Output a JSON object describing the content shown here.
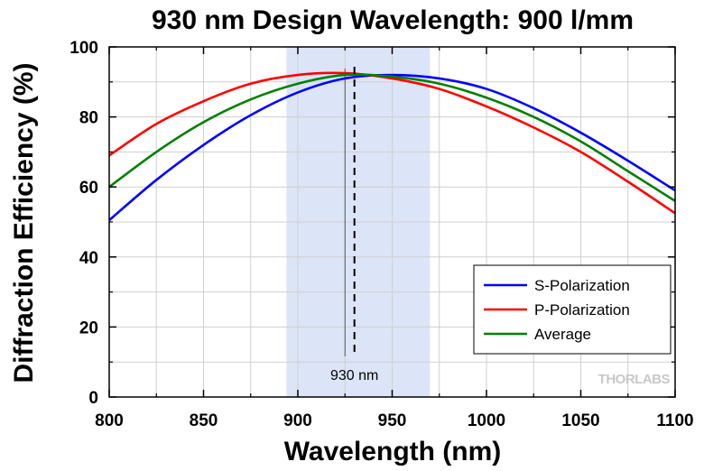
{
  "chart_data": {
    "type": "line",
    "title": "930 nm Design Wavelength: 900 l/mm",
    "xlabel": "Wavelength (nm)",
    "ylabel": "Diffraction Efficiency (%)",
    "xlim": [
      800,
      1100
    ],
    "ylim": [
      0,
      100
    ],
    "xticks": [
      800,
      850,
      900,
      950,
      1000,
      1050,
      1100
    ],
    "yticks": [
      0,
      20,
      40,
      60,
      80,
      100
    ],
    "grid": true,
    "legend_position": "bottom-right",
    "highlight_band": {
      "x_range": [
        894,
        970
      ],
      "color": "#dce4f7"
    },
    "design_line": {
      "x": 930,
      "label": "930 nm",
      "style": "dashed"
    },
    "reference_line": {
      "x": 925
    },
    "x": [
      800,
      825,
      850,
      875,
      900,
      925,
      950,
      975,
      1000,
      1025,
      1050,
      1075,
      1100
    ],
    "series": [
      {
        "name": "S-Polarization",
        "color": "#0000ff",
        "values": [
          50.5,
          62,
          72,
          80.5,
          87,
          91,
          92,
          91,
          88,
          82.5,
          75.5,
          67.5,
          59
        ]
      },
      {
        "name": "P-Polarization",
        "color": "#ff0000",
        "values": [
          69,
          78,
          84.5,
          89.5,
          92,
          92.5,
          91,
          88,
          83,
          77,
          70,
          61.5,
          52.5
        ]
      },
      {
        "name": "Average",
        "color": "#008000",
        "values": [
          60,
          70,
          78.5,
          85,
          89.5,
          92,
          91.5,
          89.5,
          85.5,
          80,
          73,
          64.5,
          56
        ]
      }
    ],
    "watermark": "THORLABS"
  }
}
